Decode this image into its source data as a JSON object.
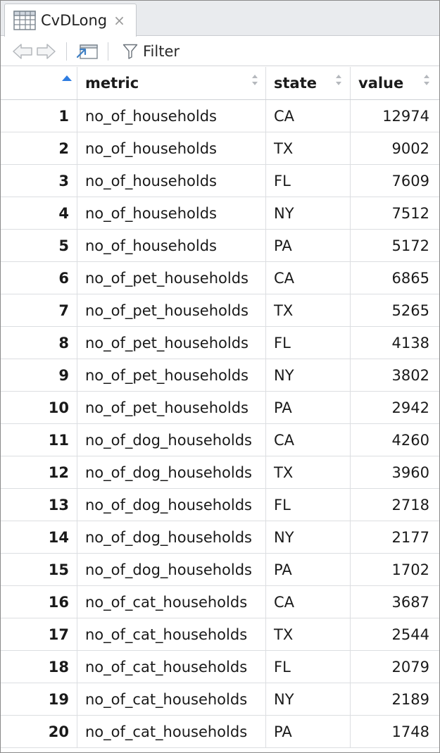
{
  "tab": {
    "title": "CvDLong",
    "close_glyph": "×",
    "icon": "table-grid-icon"
  },
  "toolbar": {
    "back_icon": "arrow-left-icon",
    "forward_icon": "arrow-right-icon",
    "popout_icon": "popout-window-icon",
    "filter_icon": "funnel-icon",
    "filter_label": "Filter"
  },
  "columns": [
    "metric",
    "state",
    "value"
  ],
  "rows": [
    {
      "idx": "1",
      "metric": "no_of_households",
      "state": "CA",
      "value": "12974"
    },
    {
      "idx": "2",
      "metric": "no_of_households",
      "state": "TX",
      "value": "9002"
    },
    {
      "idx": "3",
      "metric": "no_of_households",
      "state": "FL",
      "value": "7609"
    },
    {
      "idx": "4",
      "metric": "no_of_households",
      "state": "NY",
      "value": "7512"
    },
    {
      "idx": "5",
      "metric": "no_of_households",
      "state": "PA",
      "value": "5172"
    },
    {
      "idx": "6",
      "metric": "no_of_pet_households",
      "state": "CA",
      "value": "6865"
    },
    {
      "idx": "7",
      "metric": "no_of_pet_households",
      "state": "TX",
      "value": "5265"
    },
    {
      "idx": "8",
      "metric": "no_of_pet_households",
      "state": "FL",
      "value": "4138"
    },
    {
      "idx": "9",
      "metric": "no_of_pet_households",
      "state": "NY",
      "value": "3802"
    },
    {
      "idx": "10",
      "metric": "no_of_pet_households",
      "state": "PA",
      "value": "2942"
    },
    {
      "idx": "11",
      "metric": "no_of_dog_households",
      "state": "CA",
      "value": "4260"
    },
    {
      "idx": "12",
      "metric": "no_of_dog_households",
      "state": "TX",
      "value": "3960"
    },
    {
      "idx": "13",
      "metric": "no_of_dog_households",
      "state": "FL",
      "value": "2718"
    },
    {
      "idx": "14",
      "metric": "no_of_dog_households",
      "state": "NY",
      "value": "2177"
    },
    {
      "idx": "15",
      "metric": "no_of_dog_households",
      "state": "PA",
      "value": "1702"
    },
    {
      "idx": "16",
      "metric": "no_of_cat_households",
      "state": "CA",
      "value": "3687"
    },
    {
      "idx": "17",
      "metric": "no_of_cat_households",
      "state": "TX",
      "value": "2544"
    },
    {
      "idx": "18",
      "metric": "no_of_cat_households",
      "state": "FL",
      "value": "2079"
    },
    {
      "idx": "19",
      "metric": "no_of_cat_households",
      "state": "NY",
      "value": "2189"
    },
    {
      "idx": "20",
      "metric": "no_of_cat_households",
      "state": "PA",
      "value": "1748"
    }
  ],
  "colors": {
    "accent": "#2f7de1",
    "sort_inactive": "#b5b8bd",
    "chrome": "#e9ebee"
  }
}
